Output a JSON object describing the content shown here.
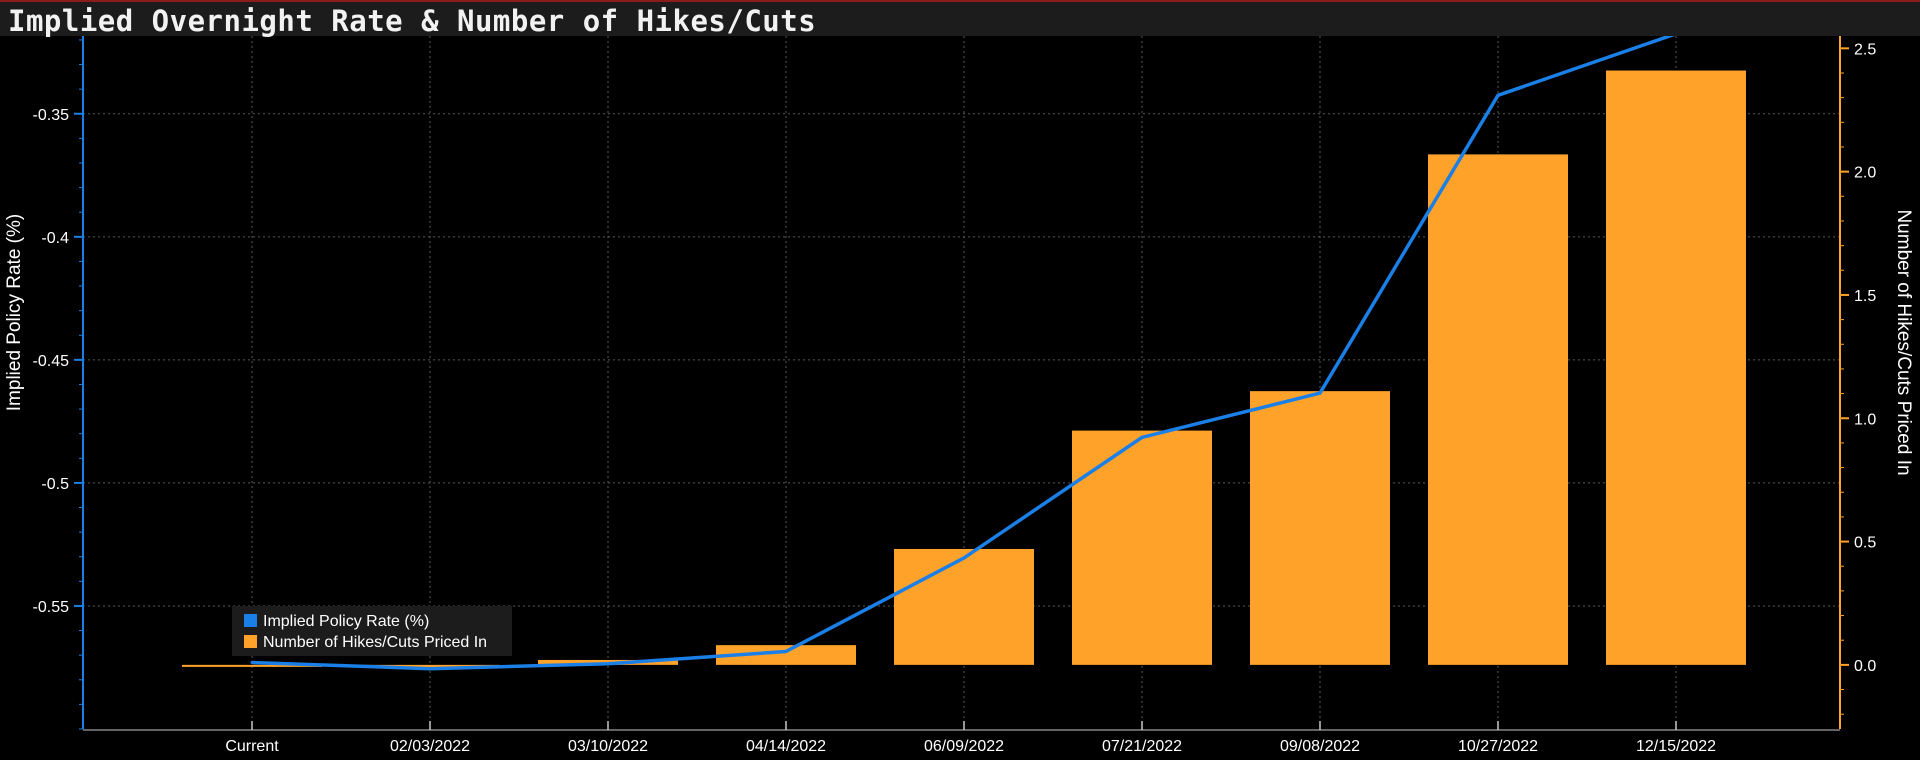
{
  "title": "Implied Overnight Rate & Number of Hikes/Cuts",
  "chart_data": {
    "type": "bar",
    "categories": [
      "Current",
      "02/03/2022",
      "03/10/2022",
      "04/14/2022",
      "06/09/2022",
      "07/21/2022",
      "09/08/2022",
      "10/27/2022",
      "12/15/2022"
    ],
    "series": [
      {
        "name": "Implied Policy Rate (%)",
        "type": "line",
        "axis": "left",
        "color": "#1a7fe6",
        "values": [
          -0.573,
          -0.5755,
          -0.5735,
          -0.5685,
          -0.5305,
          -0.4815,
          -0.4635,
          -0.3425,
          -0.3175
        ]
      },
      {
        "name": "Number of Hikes/Cuts Priced In",
        "type": "bar",
        "axis": "right",
        "color": "#ffa22a",
        "values": [
          0.0,
          -0.01,
          0.02,
          0.08,
          0.47,
          0.95,
          1.11,
          2.07,
          2.41
        ]
      }
    ],
    "ylabel_left": "Implied Policy Rate (%)",
    "ylabel_right": "Number of Hikes/Cuts Priced In",
    "ylim_left": [
      -0.6,
      -0.3184
    ],
    "yticks_left": [
      -0.35,
      -0.4,
      -0.45,
      -0.5,
      -0.55
    ],
    "ylim_right": [
      -0.26,
      2.55
    ],
    "yticks_right": [
      0.0,
      0.5,
      1.0,
      1.5,
      2.0,
      2.5
    ],
    "ytick_labels_right": [
      "0.0",
      "0.5",
      "1.0",
      "1.5",
      "2.0",
      "2.5"
    ],
    "grid": true,
    "legend_position": "bottom-left"
  }
}
